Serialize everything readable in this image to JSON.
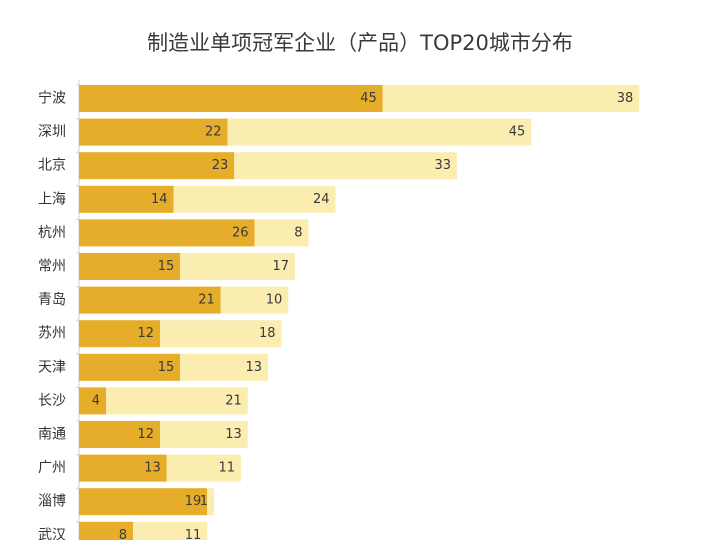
{
  "chart_data": {
    "type": "bar",
    "orientation": "horizontal",
    "stacked": true,
    "title": "制造业单项冠军企业（产品）TOP20城市分布",
    "categories": [
      "宁波",
      "深圳",
      "北京",
      "上海",
      "杭州",
      "常州",
      "青岛",
      "苏州",
      "天津",
      "长沙",
      "南通",
      "广州",
      "淄博",
      "武汉"
    ],
    "series": [
      {
        "values": [
          45,
          22,
          23,
          14,
          26,
          15,
          21,
          12,
          15,
          4,
          12,
          13,
          19,
          8
        ],
        "color": "#e6ad2a"
      },
      {
        "values": [
          38,
          45,
          33,
          24,
          8,
          17,
          10,
          18,
          13,
          21,
          13,
          11,
          1,
          11
        ],
        "color": "#fbedb0"
      }
    ],
    "xlim": [
      0,
      83
    ],
    "grid": false,
    "legend": "none"
  }
}
